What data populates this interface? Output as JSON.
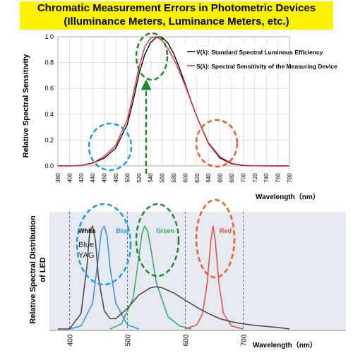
{
  "title": {
    "line1": "Chromatic Measurement Errors in Photometric Devices",
    "line2": "(Illuminance Meters, Luminance Meters, etc.)"
  },
  "colors": {
    "title_bg": "#fff200",
    "v_lambda": "#000000",
    "s_lambda": "#e8283c",
    "white_led": "#444444",
    "blue_led": "#3a8fd8",
    "green_led": "#2ea86a",
    "red_led": "#e84a40",
    "circle_blue": "#1a9be8",
    "circle_green": "#1a8a2a",
    "circle_red": "#f05a28"
  },
  "chart_data": [
    {
      "type": "line",
      "xlabel": "Wavelength（nm）",
      "ylabel": "Relative Spectral Sensitivity",
      "xlim": [
        380,
        780
      ],
      "ylim": [
        0,
        1.0
      ],
      "x_ticks": [
        380,
        400,
        420,
        440,
        460,
        480,
        500,
        520,
        540,
        560,
        580,
        600,
        620,
        640,
        660,
        680,
        700,
        720,
        740,
        760,
        780
      ],
      "y_ticks": [
        "0.0",
        "0.2",
        "0.4",
        "0.6",
        "0.8",
        "1.0"
      ],
      "grid": true,
      "legend_position": "top-right",
      "series": [
        {
          "name": "V(λ): Standard Spectral Luminous Efficiency",
          "x": [
            380,
            400,
            420,
            440,
            460,
            480,
            500,
            510,
            520,
            530,
            540,
            550,
            555,
            560,
            570,
            580,
            590,
            600,
            610,
            620,
            640,
            660,
            680,
            700,
            720,
            740,
            760,
            780
          ],
          "y": [
            0.0,
            0.0004,
            0.004,
            0.023,
            0.06,
            0.139,
            0.323,
            0.503,
            0.71,
            0.862,
            0.954,
            0.995,
            1.0,
            0.995,
            0.952,
            0.87,
            0.757,
            0.631,
            0.503,
            0.381,
            0.175,
            0.061,
            0.017,
            0.004,
            0.001,
            0.0003,
            0.0001,
            0.0
          ]
        },
        {
          "name": "S(λ): Spectral Sensitivity of the Measuring Device",
          "x": [
            380,
            400,
            420,
            440,
            460,
            480,
            500,
            510,
            520,
            530,
            540,
            550,
            560,
            570,
            580,
            590,
            600,
            610,
            620,
            640,
            660,
            680,
            700,
            720,
            740,
            760,
            780
          ],
          "y": [
            0.0,
            0.0,
            0.003,
            0.02,
            0.075,
            0.16,
            0.36,
            0.55,
            0.76,
            0.92,
            0.99,
            1.0,
            0.97,
            0.91,
            0.83,
            0.73,
            0.62,
            0.5,
            0.38,
            0.18,
            0.07,
            0.02,
            0.005,
            0.001,
            0.0,
            0.0,
            0.0
          ]
        }
      ],
      "annotations": [
        {
          "shape": "ellipse",
          "color": "blue",
          "center_x": 458,
          "center_y": 0.17
        },
        {
          "shape": "ellipse",
          "color": "green",
          "center_x": 545,
          "center_y": 0.87
        },
        {
          "shape": "ellipse",
          "color": "red",
          "center_x": 648,
          "center_y": 0.17
        }
      ]
    },
    {
      "type": "line",
      "xlabel": "Wavelength（nm）",
      "ylabel": "Relative Spectral Distribution of LED",
      "xlim": [
        380,
        780
      ],
      "x_ticks": [
        400,
        500,
        600,
        700
      ],
      "series": [
        {
          "name": "Blue",
          "x": [
            400,
            420,
            440,
            450,
            455,
            460,
            465,
            470,
            480,
            500,
            520
          ],
          "y": [
            0.0,
            0.03,
            0.25,
            0.7,
            0.95,
            1.0,
            0.9,
            0.6,
            0.25,
            0.04,
            0.0
          ]
        },
        {
          "name": "Green",
          "x": [
            470,
            490,
            510,
            520,
            525,
            530,
            535,
            540,
            550,
            570,
            590,
            610
          ],
          "y": [
            0.0,
            0.05,
            0.3,
            0.7,
            0.92,
            1.0,
            0.95,
            0.8,
            0.45,
            0.12,
            0.03,
            0.0
          ]
        },
        {
          "name": "Red",
          "x": [
            600,
            620,
            630,
            638,
            644,
            648,
            652,
            658,
            666,
            680,
            700
          ],
          "y": [
            0.0,
            0.04,
            0.15,
            0.45,
            0.85,
            1.0,
            0.85,
            0.45,
            0.15,
            0.03,
            0.0
          ]
        },
        {
          "name": "White",
          "x": [
            380,
            400,
            420,
            430,
            435,
            440,
            445,
            450,
            460,
            470,
            480,
            500,
            520,
            540,
            550,
            560,
            580,
            600,
            620,
            640,
            660,
            680,
            700,
            720,
            740,
            760,
            780
          ],
          "y": [
            0.0,
            0.0,
            0.15,
            0.6,
            0.95,
            1.0,
            0.85,
            0.5,
            0.18,
            0.1,
            0.1,
            0.2,
            0.33,
            0.4,
            0.41,
            0.4,
            0.35,
            0.28,
            0.21,
            0.15,
            0.1,
            0.07,
            0.05,
            0.035,
            0.025,
            0.015,
            0.0
          ]
        }
      ],
      "labels": {
        "white": "White",
        "blue": "Blue",
        "green": "Green",
        "red": "Red",
        "phosphor_line1": "Blue",
        "phosphor_line2": "YAG"
      }
    }
  ]
}
